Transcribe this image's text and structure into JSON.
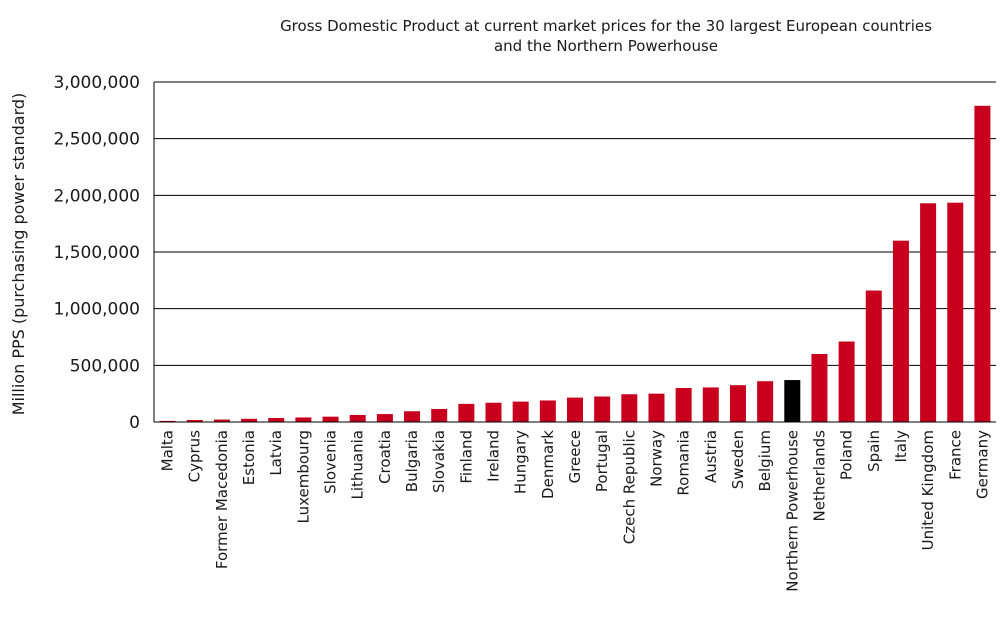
{
  "chart_data": {
    "type": "bar",
    "title": "Gross Domestic Product at current market prices for the 30 largest European countries and the Northern Powerhouse",
    "title_lines": [
      "Gross Domestic Product at current market prices for the 30 largest European countries",
      "and the Northern Powerhouse"
    ],
    "xlabel": "",
    "ylabel": "Million PPS (purchasing power standard)",
    "ylim": [
      0,
      3000000
    ],
    "yticks": [
      0,
      500000,
      1000000,
      1500000,
      2000000,
      2500000,
      3000000
    ],
    "ytick_labels": [
      "0",
      "500,000",
      "1,000,000",
      "1,500,000",
      "2,000,000",
      "2,500,000",
      "3,000,000"
    ],
    "grid": "horizontal",
    "categories": [
      "Malta",
      "Cyprus",
      "Former Macedonia",
      "Estonia",
      "Latvia",
      "Luxembourg",
      "Slovenia",
      "Lithuania",
      "Croatia",
      "Bulgaria",
      "Slovakia",
      "Finland",
      "Ireland",
      "Hungary",
      "Denmark",
      "Greece",
      "Portugal",
      "Czech Republic",
      "Norway",
      "Romania",
      "Austria",
      "Sweden",
      "Belgium",
      "Northern Powerhouse",
      "Netherlands",
      "Poland",
      "Spain",
      "Italy",
      "United Kingdom",
      "France",
      "Germany"
    ],
    "values": [
      10000,
      18000,
      22000,
      28000,
      35000,
      40000,
      47000,
      62000,
      70000,
      95000,
      115000,
      160000,
      170000,
      180000,
      190000,
      215000,
      225000,
      245000,
      250000,
      300000,
      305000,
      325000,
      360000,
      370000,
      600000,
      710000,
      1160000,
      1600000,
      1930000,
      1935000,
      2790000
    ],
    "bar_color": "#c8001e",
    "highlight_color": "#000000",
    "highlight_category": "Northern Powerhouse"
  }
}
